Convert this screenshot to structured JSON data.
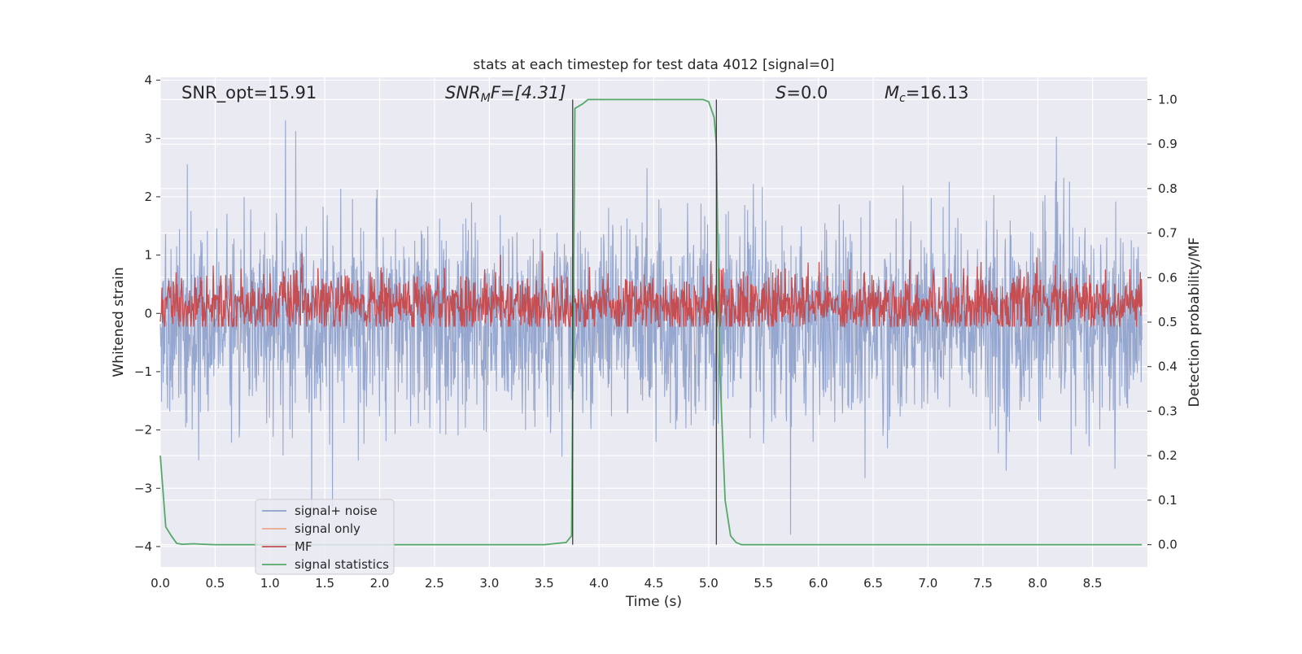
{
  "chart_data": {
    "type": "line",
    "title": "stats at each timestep for test data 4012 [signal=0]",
    "xlabel": "Time (s)",
    "ylabel": "Whitened strain",
    "y2label": "Detection probability/MF",
    "xlim": [
      0.0,
      9.0
    ],
    "ylim": [
      -4.35,
      4.05
    ],
    "y2lim": [
      -0.05,
      1.05
    ],
    "xticks": [
      "0.0",
      "0.5",
      "1.0",
      "1.5",
      "2.0",
      "2.5",
      "3.0",
      "3.5",
      "4.0",
      "4.5",
      "5.0",
      "5.5",
      "6.0",
      "6.5",
      "7.0",
      "7.5",
      "8.0",
      "8.5"
    ],
    "xtick_values": [
      0.0,
      0.5,
      1.0,
      1.5,
      2.0,
      2.5,
      3.0,
      3.5,
      4.0,
      4.5,
      5.0,
      5.5,
      6.0,
      6.5,
      7.0,
      7.5,
      8.0,
      8.5
    ],
    "yticks": [
      "−4",
      "−3",
      "−2",
      "−1",
      "0",
      "1",
      "2",
      "3",
      "4"
    ],
    "ytick_values": [
      -4,
      -3,
      -2,
      -1,
      0,
      1,
      2,
      3,
      4
    ],
    "y2ticks": [
      "0.0",
      "0.1",
      "0.2",
      "0.3",
      "0.4",
      "0.5",
      "0.6",
      "0.7",
      "0.8",
      "0.9",
      "1.0"
    ],
    "y2tick_values": [
      0.0,
      0.1,
      0.2,
      0.3,
      0.4,
      0.5,
      0.6,
      0.7,
      0.8,
      0.9,
      1.0
    ],
    "grid": true,
    "legend_position": "lower-left",
    "annotations": {
      "snr_opt": "SNR_opt=15.91",
      "snr_mf_base": "SNR",
      "snr_mf_sub": "M",
      "snr_mf_rest": "F=[4.31]",
      "s_var": "S",
      "s_rest": "=0.0",
      "mc_base": "M",
      "mc_sub": "c",
      "mc_rest": "=16.13"
    },
    "vertical_lines": [
      3.76,
      5.07
    ],
    "series": [
      {
        "name": "signal+ noise",
        "color": "#8da0cb",
        "axis": "left",
        "description_values": {
          "band_low": -1.7,
          "band_high": 1.35,
          "max_peak": 3.65,
          "min_peak": -4.0
        }
      },
      {
        "name": "signal only",
        "color": "#e9a98b",
        "axis": "left",
        "values": []
      },
      {
        "name": "MF",
        "color": "#c44e52",
        "axis": "right",
        "description_values": {
          "center": 0.54,
          "low": 0.5,
          "high": 0.65
        }
      },
      {
        "name": "signal statistics",
        "color": "#55a868",
        "axis": "right",
        "x": [
          0.0,
          0.05,
          0.1,
          0.15,
          0.2,
          0.3,
          0.4,
          0.5,
          1.0,
          2.0,
          3.0,
          3.5,
          3.7,
          3.75,
          3.78,
          3.85,
          3.9,
          4.0,
          4.5,
          4.95,
          5.0,
          5.05,
          5.07,
          5.1,
          5.15,
          5.2,
          5.25,
          5.3,
          6.0,
          7.0,
          8.0,
          8.95
        ],
        "values": [
          0.2,
          0.04,
          0.02,
          0.003,
          0.001,
          0.002,
          0.001,
          0.0,
          0.0,
          0.0,
          0.0,
          0.0,
          0.005,
          0.02,
          0.98,
          0.99,
          1.0,
          1.0,
          1.0,
          1.0,
          0.995,
          0.96,
          0.9,
          0.4,
          0.1,
          0.02,
          0.005,
          0.0,
          0.0,
          0.0,
          0.0,
          0.0
        ]
      }
    ]
  }
}
